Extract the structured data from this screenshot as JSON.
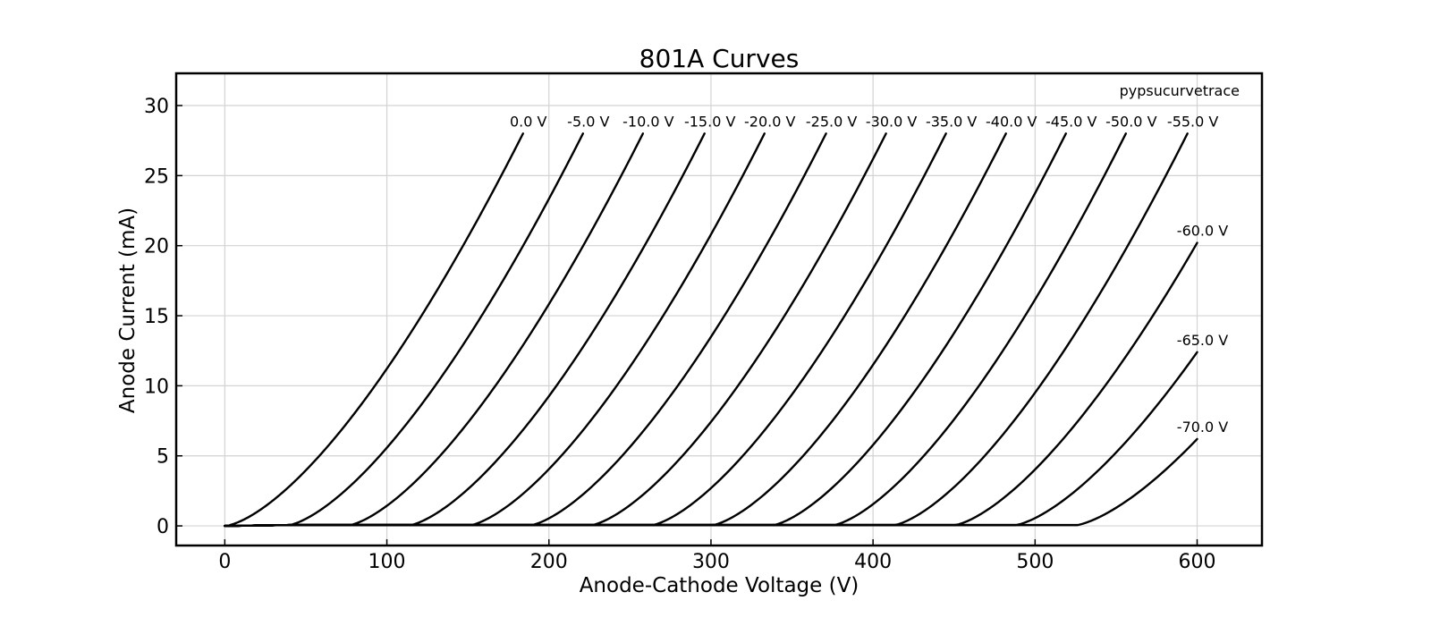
{
  "chart_data": {
    "type": "line",
    "title": "801A Curves",
    "xlabel": "Anode-Cathode Voltage (V)",
    "ylabel": "Anode Current (mA)",
    "watermark": "pypsucurvetrace",
    "xlim": [
      -30,
      640
    ],
    "ylim": [
      -1.4,
      32.3
    ],
    "xticks": [
      0,
      100,
      200,
      300,
      400,
      500,
      600
    ],
    "yticks": [
      0,
      5,
      10,
      15,
      20,
      25,
      30
    ],
    "xtick_labels": [
      "0",
      "100",
      "200",
      "300",
      "400",
      "500",
      "600"
    ],
    "ytick_labels": [
      "0",
      "5",
      "10",
      "15",
      "20",
      "25",
      "30"
    ],
    "grid": true,
    "line_color": "#000000",
    "grid_color": "#d3d3d3",
    "curve_model": {
      "knee_voltage_per_grid_volt": 7.47,
      "exponent": 1.5
    },
    "series": [
      {
        "name": "0.0 V",
        "grid_voltage": 0.0,
        "x_end": 184,
        "y_end": 28.0
      },
      {
        "name": "-5.0 V",
        "grid_voltage": -5.0,
        "x_end": 221,
        "y_end": 28.0
      },
      {
        "name": "-10.0 V",
        "grid_voltage": -10.0,
        "x_end": 258,
        "y_end": 28.0
      },
      {
        "name": "-15.0 V",
        "grid_voltage": -15.0,
        "x_end": 296,
        "y_end": 28.0
      },
      {
        "name": "-20.0 V",
        "grid_voltage": -20.0,
        "x_end": 333,
        "y_end": 28.0
      },
      {
        "name": "-25.0 V",
        "grid_voltage": -25.0,
        "x_end": 371,
        "y_end": 28.0
      },
      {
        "name": "-30.0 V",
        "grid_voltage": -30.0,
        "x_end": 408,
        "y_end": 28.0
      },
      {
        "name": "-35.0 V",
        "grid_voltage": -35.0,
        "x_end": 445,
        "y_end": 28.0
      },
      {
        "name": "-40.0 V",
        "grid_voltage": -40.0,
        "x_end": 482,
        "y_end": 28.0
      },
      {
        "name": "-45.0 V",
        "grid_voltage": -45.0,
        "x_end": 519,
        "y_end": 28.0
      },
      {
        "name": "-50.0 V",
        "grid_voltage": -50.0,
        "x_end": 556,
        "y_end": 28.0
      },
      {
        "name": "-55.0 V",
        "grid_voltage": -55.0,
        "x_end": 594,
        "y_end": 28.0
      },
      {
        "name": "-60.0 V",
        "grid_voltage": -60.0,
        "x_end": 600,
        "y_end": 20.2
      },
      {
        "name": "-65.0 V",
        "grid_voltage": -65.0,
        "x_end": 600,
        "y_end": 12.4
      },
      {
        "name": "-70.0 V",
        "grid_voltage": -70.0,
        "x_end": 600,
        "y_end": 6.2
      }
    ]
  }
}
